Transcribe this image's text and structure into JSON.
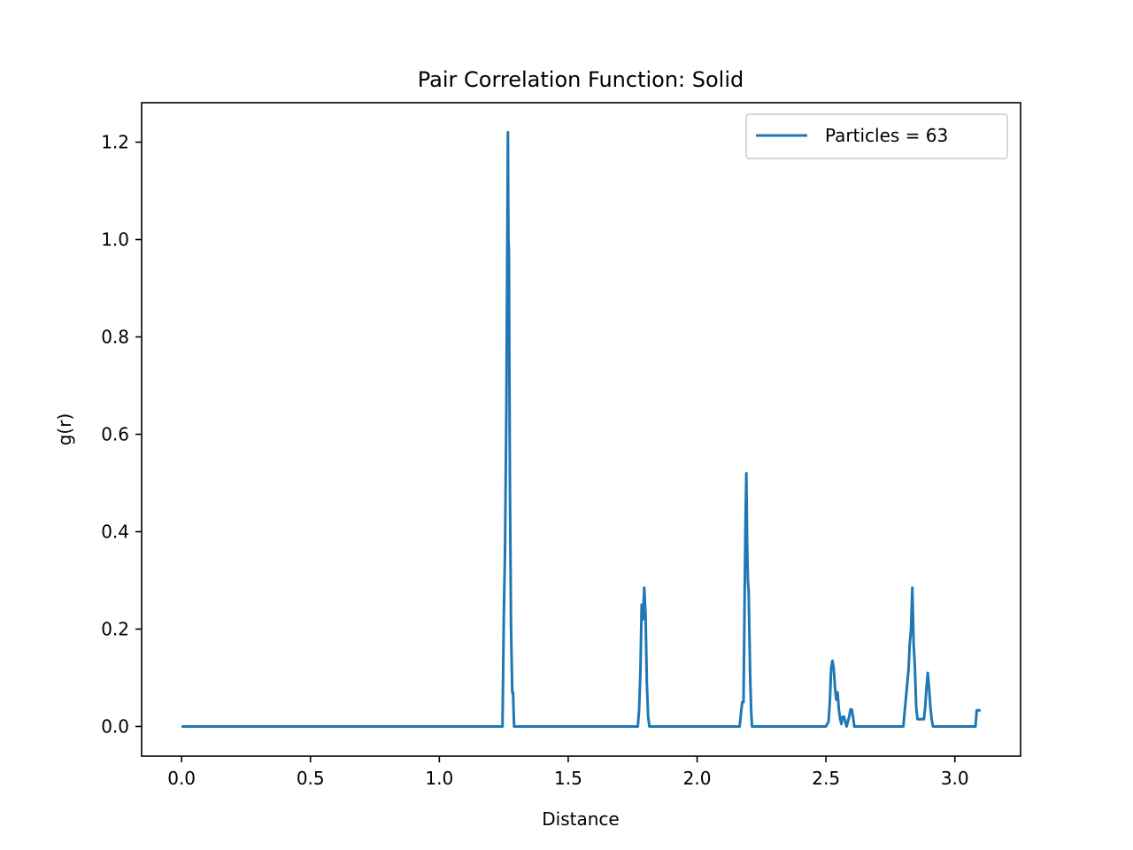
{
  "chart_data": {
    "type": "line",
    "title": "Pair Correlation Function: Solid",
    "xlabel": "Distance",
    "ylabel": "g(r)",
    "xlim": [
      -0.155,
      3.255
    ],
    "ylim": [
      -0.061,
      1.281
    ],
    "xticks": [
      0.0,
      0.5,
      1.0,
      1.5,
      2.0,
      2.5,
      3.0
    ],
    "xtick_labels": [
      "0.0",
      "0.5",
      "1.0",
      "1.5",
      "2.0",
      "2.5",
      "3.0"
    ],
    "yticks": [
      0.0,
      0.2,
      0.4,
      0.6,
      0.8,
      1.0,
      1.2
    ],
    "ytick_labels": [
      "0.0",
      "0.2",
      "0.4",
      "0.6",
      "0.8",
      "1.0",
      "1.2"
    ],
    "grid": false,
    "legend_position": "top-right",
    "series": [
      {
        "name": "Particles = 63",
        "color": "#1f77b4",
        "x": [
          0.0,
          1.245,
          1.25,
          1.255,
          1.26,
          1.263,
          1.266,
          1.268,
          1.27,
          1.272,
          1.274,
          1.276,
          1.278,
          1.28,
          1.283,
          1.286,
          1.29,
          1.295,
          1.3,
          1.305,
          1.77,
          1.775,
          1.78,
          1.785,
          1.79,
          1.795,
          1.8,
          1.805,
          1.81,
          1.815,
          1.82,
          2.165,
          2.175,
          2.18,
          2.185,
          2.188,
          2.191,
          2.194,
          2.197,
          2.2,
          2.203,
          2.206,
          2.21,
          2.213,
          2.217,
          2.222,
          2.5,
          2.51,
          2.515,
          2.52,
          2.525,
          2.53,
          2.535,
          2.54,
          2.545,
          2.55,
          2.555,
          2.56,
          2.565,
          2.57,
          2.575,
          2.58,
          2.59,
          2.595,
          2.6,
          2.605,
          2.61,
          2.615,
          2.62,
          2.625,
          2.63,
          2.635,
          2.8,
          2.82,
          2.825,
          2.83,
          2.835,
          2.84,
          2.845,
          2.85,
          2.855,
          2.86,
          2.88,
          2.885,
          2.89,
          2.895,
          2.9,
          2.905,
          2.91,
          2.915,
          3.08,
          3.085,
          3.1
        ],
        "y": [
          0.0,
          0.0,
          0.22,
          0.37,
          0.65,
          0.93,
          1.22,
          1.0,
          0.98,
          0.7,
          0.48,
          0.35,
          0.21,
          0.15,
          0.07,
          0.07,
          0.0,
          0.0,
          0.0,
          0.0,
          0.0,
          0.035,
          0.11,
          0.25,
          0.22,
          0.285,
          0.23,
          0.09,
          0.02,
          0.0,
          0.0,
          0.0,
          0.05,
          0.05,
          0.29,
          0.43,
          0.52,
          0.38,
          0.3,
          0.28,
          0.19,
          0.1,
          0.03,
          0.0,
          0.0,
          0.0,
          0.0,
          0.01,
          0.05,
          0.12,
          0.135,
          0.12,
          0.08,
          0.055,
          0.07,
          0.035,
          0.015,
          0.005,
          0.02,
          0.02,
          0.01,
          0.0,
          0.02,
          0.035,
          0.035,
          0.02,
          0.0,
          0.0,
          0.0,
          0.0,
          0.0,
          0.0,
          0.0,
          0.115,
          0.17,
          0.2,
          0.285,
          0.17,
          0.12,
          0.04,
          0.015,
          0.015,
          0.015,
          0.04,
          0.08,
          0.11,
          0.08,
          0.04,
          0.015,
          0.0,
          0.0,
          0.033,
          0.033
        ]
      }
    ]
  }
}
